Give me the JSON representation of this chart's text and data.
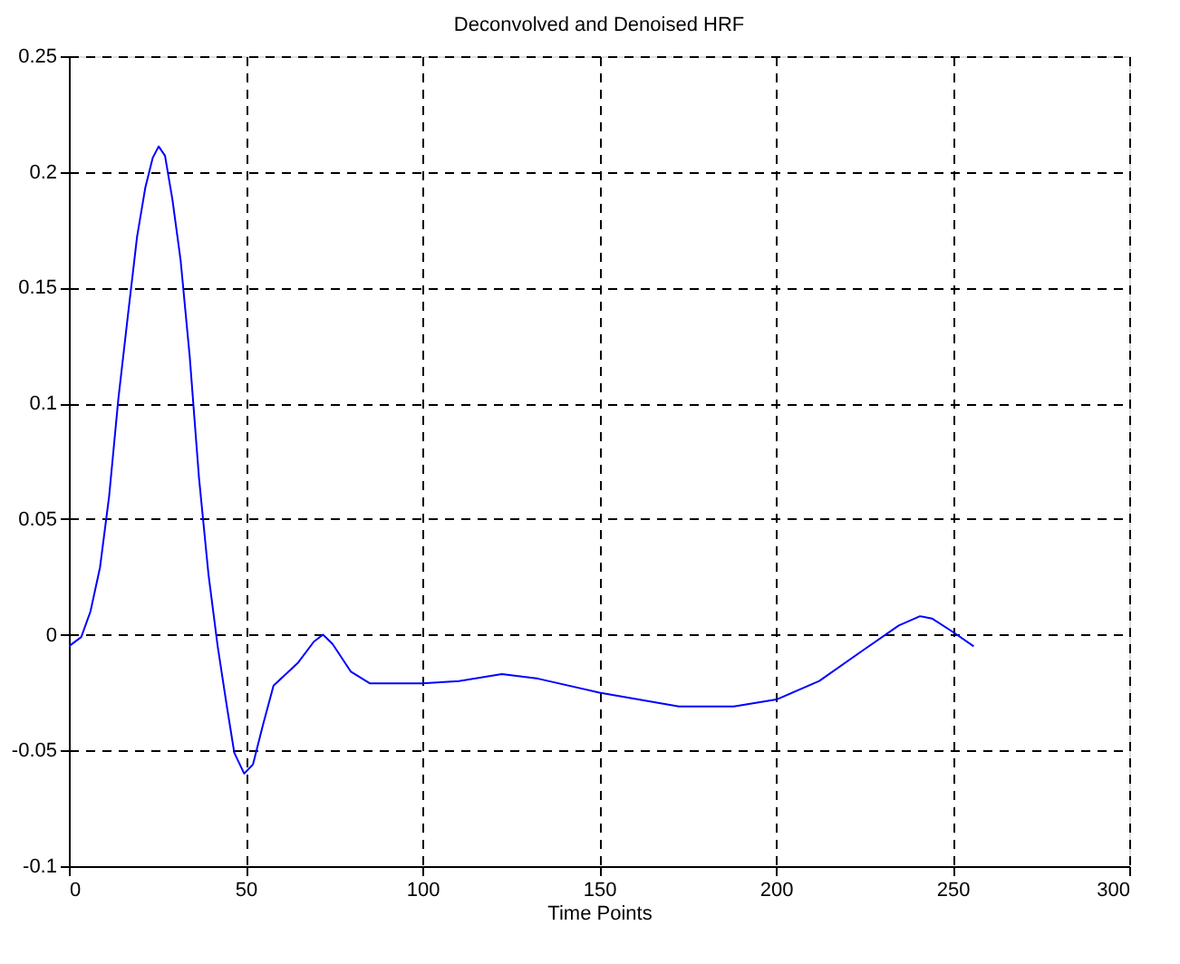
{
  "chart_data": {
    "type": "line",
    "title": "Deconvolved and Denoised HRF",
    "xlabel": "Time Points",
    "x": [
      0,
      3.5,
      6.1,
      8.8,
      11.4,
      14,
      16.7,
      19.3,
      21.6,
      23.7,
      25.4,
      27.2,
      29.3,
      31.6,
      34.2,
      36.8,
      39.5,
      42.1,
      44.7,
      46.8,
      49.6,
      52.1,
      54.9,
      57.9,
      61.4,
      64.9,
      69.3,
      71.9,
      74.6,
      79.8,
      85.1,
      97.4,
      100,
      110.4,
      122.5,
      132.8,
      150.1,
      172.6,
      188.1,
      200.2,
      212.3,
      224.4,
      234.8,
      240.8,
      244.2,
      250.3,
      256
    ],
    "series": [
      {
        "color": "#0000ff",
        "values": [
          -0.005,
          -0.001,
          0.01,
          0.029,
          0.06,
          0.102,
          0.138,
          0.172,
          0.193,
          0.206,
          0.211,
          0.207,
          0.188,
          0.162,
          0.12,
          0.068,
          0.026,
          -0.005,
          -0.031,
          -0.051,
          -0.06,
          -0.056,
          -0.039,
          -0.022,
          -0.017,
          -0.012,
          -0.003,
          0,
          -0.004,
          -0.016,
          -0.021,
          -0.021,
          -0.021,
          -0.02,
          -0.017,
          -0.019,
          -0.025,
          -0.031,
          -0.031,
          -0.028,
          -0.02,
          -0.007,
          0.004,
          0.008,
          0.007,
          0.001,
          -0.005
        ]
      }
    ],
    "xlim": [
      0,
      300
    ],
    "xticks": [
      0,
      50,
      100,
      150,
      200,
      250,
      300
    ],
    "ylim": [
      -0.1,
      0.25
    ],
    "yticks": [
      -0.1,
      -0.05,
      0,
      0.05,
      0.1,
      0.15,
      0.2,
      0.25
    ],
    "grid": true,
    "line_style": "solid"
  }
}
